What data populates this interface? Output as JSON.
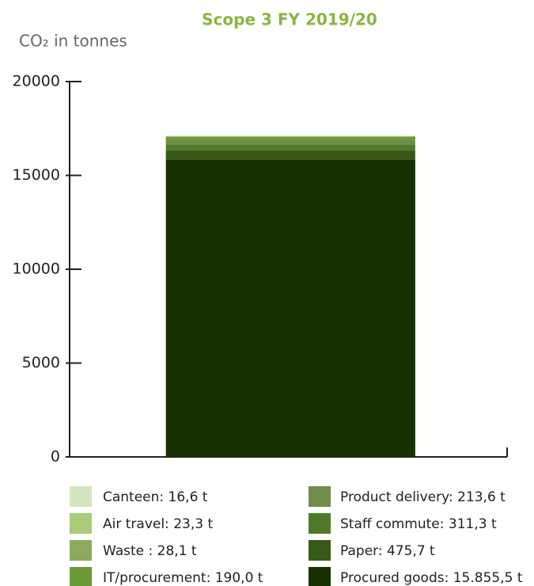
{
  "chart_data": {
    "type": "stacked_bar",
    "title": "Scope 3 FY 2019/20",
    "y_label": "CO₂ in tonnes",
    "categories": [
      null
    ],
    "series": [
      {
        "name": "Canteen: 16,6 t",
        "color": "#d3e5bf",
        "values": [
          16.6
        ]
      },
      {
        "name": "Air travel: 23,3 t",
        "color": "#a9cd79",
        "values": [
          23.3
        ]
      },
      {
        "name": "Waste : 28,1 t",
        "color": "#8bac5c",
        "values": [
          28.1
        ]
      },
      {
        "name": "IT/procurement: 190,0 t",
        "color": "#6b9b35",
        "values": [
          190.0
        ]
      },
      {
        "name": "Product delivery: 213,6 t",
        "color": "#6f8d4b",
        "values": [
          213.6
        ]
      },
      {
        "name": "Staff commute: 311,3 t",
        "color": "#4f7b29",
        "values": [
          311.3
        ]
      },
      {
        "name": "Paper: 475,7 t",
        "color": "#395919",
        "values": [
          475.7
        ]
      },
      {
        "name": "Procured goods: 15.855,5 t",
        "color": "#163000",
        "values": [
          15855.5
        ]
      }
    ],
    "ylim": [
      0,
      20000
    ],
    "yticks": [
      0,
      5000,
      10000,
      15000,
      20000
    ]
  }
}
